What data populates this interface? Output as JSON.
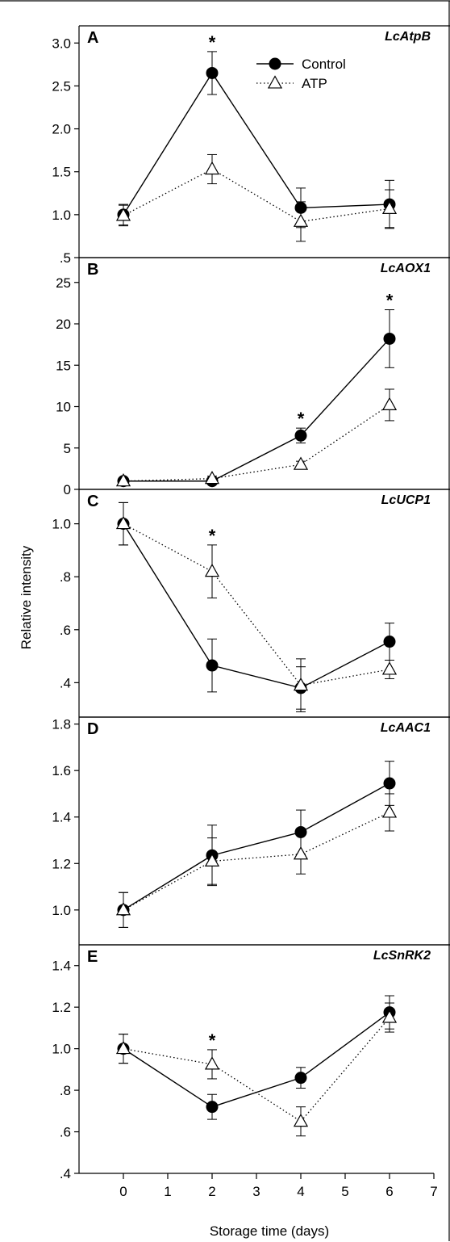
{
  "chart_data": {
    "type": "line",
    "ylabel": "Relative intensity",
    "xlabel": "Storage time (days)",
    "x_ticks": [
      "0",
      "1",
      "2",
      "3",
      "4",
      "5",
      "6",
      "7"
    ],
    "xlim": [
      -1,
      7
    ],
    "x": [
      0,
      2,
      4,
      6
    ],
    "legend": {
      "position": "top-right",
      "entries": [
        "Control",
        "ATP"
      ]
    },
    "panels": [
      {
        "letter": "A",
        "gene": "LcAtpB",
        "ylim": [
          0.5,
          3.2
        ],
        "y_ticks": [
          {
            "v": 0.5,
            "t": ".5"
          },
          {
            "v": 1.0,
            "t": "1.0"
          },
          {
            "v": 1.5,
            "t": "1.5"
          },
          {
            "v": 2.0,
            "t": "2.0"
          },
          {
            "v": 2.5,
            "t": "2.5"
          },
          {
            "v": 3.0,
            "t": "3.0"
          }
        ],
        "series": [
          {
            "name": "Control",
            "values": [
              1.0,
              2.65,
              1.08,
              1.12
            ],
            "errors": [
              0.12,
              0.25,
              0.23,
              0.28
            ]
          },
          {
            "name": "ATP",
            "values": [
              0.99,
              1.53,
              0.92,
              1.07
            ],
            "errors": [
              0.12,
              0.17,
              0.23,
              0.22
            ]
          }
        ],
        "significance": [
          {
            "x": 2,
            "label": "*"
          }
        ]
      },
      {
        "letter": "B",
        "gene": "LcAOX1",
        "ylim": [
          0,
          28
        ],
        "y_ticks": [
          {
            "v": 0,
            "t": "0"
          },
          {
            "v": 5,
            "t": "5"
          },
          {
            "v": 10,
            "t": "10"
          },
          {
            "v": 15,
            "t": "15"
          },
          {
            "v": 20,
            "t": "20"
          },
          {
            "v": 25,
            "t": "25"
          }
        ],
        "series": [
          {
            "name": "Control",
            "values": [
              1.0,
              1.0,
              6.5,
              18.2
            ],
            "errors": [
              0.2,
              0.3,
              0.9,
              3.5
            ]
          },
          {
            "name": "ATP",
            "values": [
              1.0,
              1.3,
              3.0,
              10.2
            ],
            "errors": [
              0.2,
              0.3,
              0.4,
              1.9
            ]
          }
        ],
        "significance": [
          {
            "x": 4,
            "label": "*"
          },
          {
            "x": 6,
            "label": "*"
          }
        ]
      },
      {
        "letter": "C",
        "gene": "LcUCP1",
        "ylim": [
          0.27,
          1.13
        ],
        "y_ticks": [
          {
            "v": 0.4,
            "t": ".4"
          },
          {
            "v": 0.6,
            "t": ".6"
          },
          {
            "v": 0.8,
            "t": ".8"
          },
          {
            "v": 1.0,
            "t": "1.0"
          }
        ],
        "series": [
          {
            "name": "Control",
            "values": [
              1.0,
              0.465,
              0.38,
              0.555
            ],
            "errors": [
              0.08,
              0.1,
              0.08,
              0.07
            ]
          },
          {
            "name": "ATP",
            "values": [
              1.0,
              0.82,
              0.39,
              0.45
            ],
            "errors": [
              0.08,
              0.1,
              0.1,
              0.035
            ]
          }
        ],
        "significance": [
          {
            "x": 2,
            "label": "*"
          }
        ]
      },
      {
        "letter": "D",
        "gene": "LcAAC1",
        "ylim": [
          0.85,
          1.83
        ],
        "y_ticks": [
          {
            "v": 1.0,
            "t": "1.0"
          },
          {
            "v": 1.2,
            "t": "1.2"
          },
          {
            "v": 1.4,
            "t": "1.4"
          },
          {
            "v": 1.6,
            "t": "1.6"
          },
          {
            "v": 1.8,
            "t": "1.8"
          }
        ],
        "series": [
          {
            "name": "Control",
            "values": [
              1.0,
              1.235,
              1.335,
              1.545
            ],
            "errors": [
              0.075,
              0.13,
              0.095,
              0.095
            ]
          },
          {
            "name": "ATP",
            "values": [
              1.0,
              1.21,
              1.24,
              1.42
            ],
            "errors": [
              0.075,
              0.1,
              0.085,
              0.08
            ]
          }
        ],
        "significance": []
      },
      {
        "letter": "E",
        "gene": "LcSnRK2",
        "ylim": [
          0.4,
          1.5
        ],
        "y_ticks": [
          {
            "v": 0.4,
            "t": ".4"
          },
          {
            "v": 0.6,
            "t": ".6"
          },
          {
            "v": 0.8,
            "t": ".8"
          },
          {
            "v": 1.0,
            "t": "1.0"
          },
          {
            "v": 1.2,
            "t": "1.2"
          },
          {
            "v": 1.4,
            "t": "1.4"
          }
        ],
        "series": [
          {
            "name": "Control",
            "values": [
              1.0,
              0.72,
              0.86,
              1.175
            ],
            "errors": [
              0.07,
              0.06,
              0.05,
              0.08
            ]
          },
          {
            "name": "ATP",
            "values": [
              1.0,
              0.925,
              0.65,
              1.15
            ],
            "errors": [
              0.07,
              0.07,
              0.07,
              0.07
            ]
          }
        ],
        "significance": [
          {
            "x": 2,
            "label": "*"
          }
        ]
      }
    ]
  }
}
